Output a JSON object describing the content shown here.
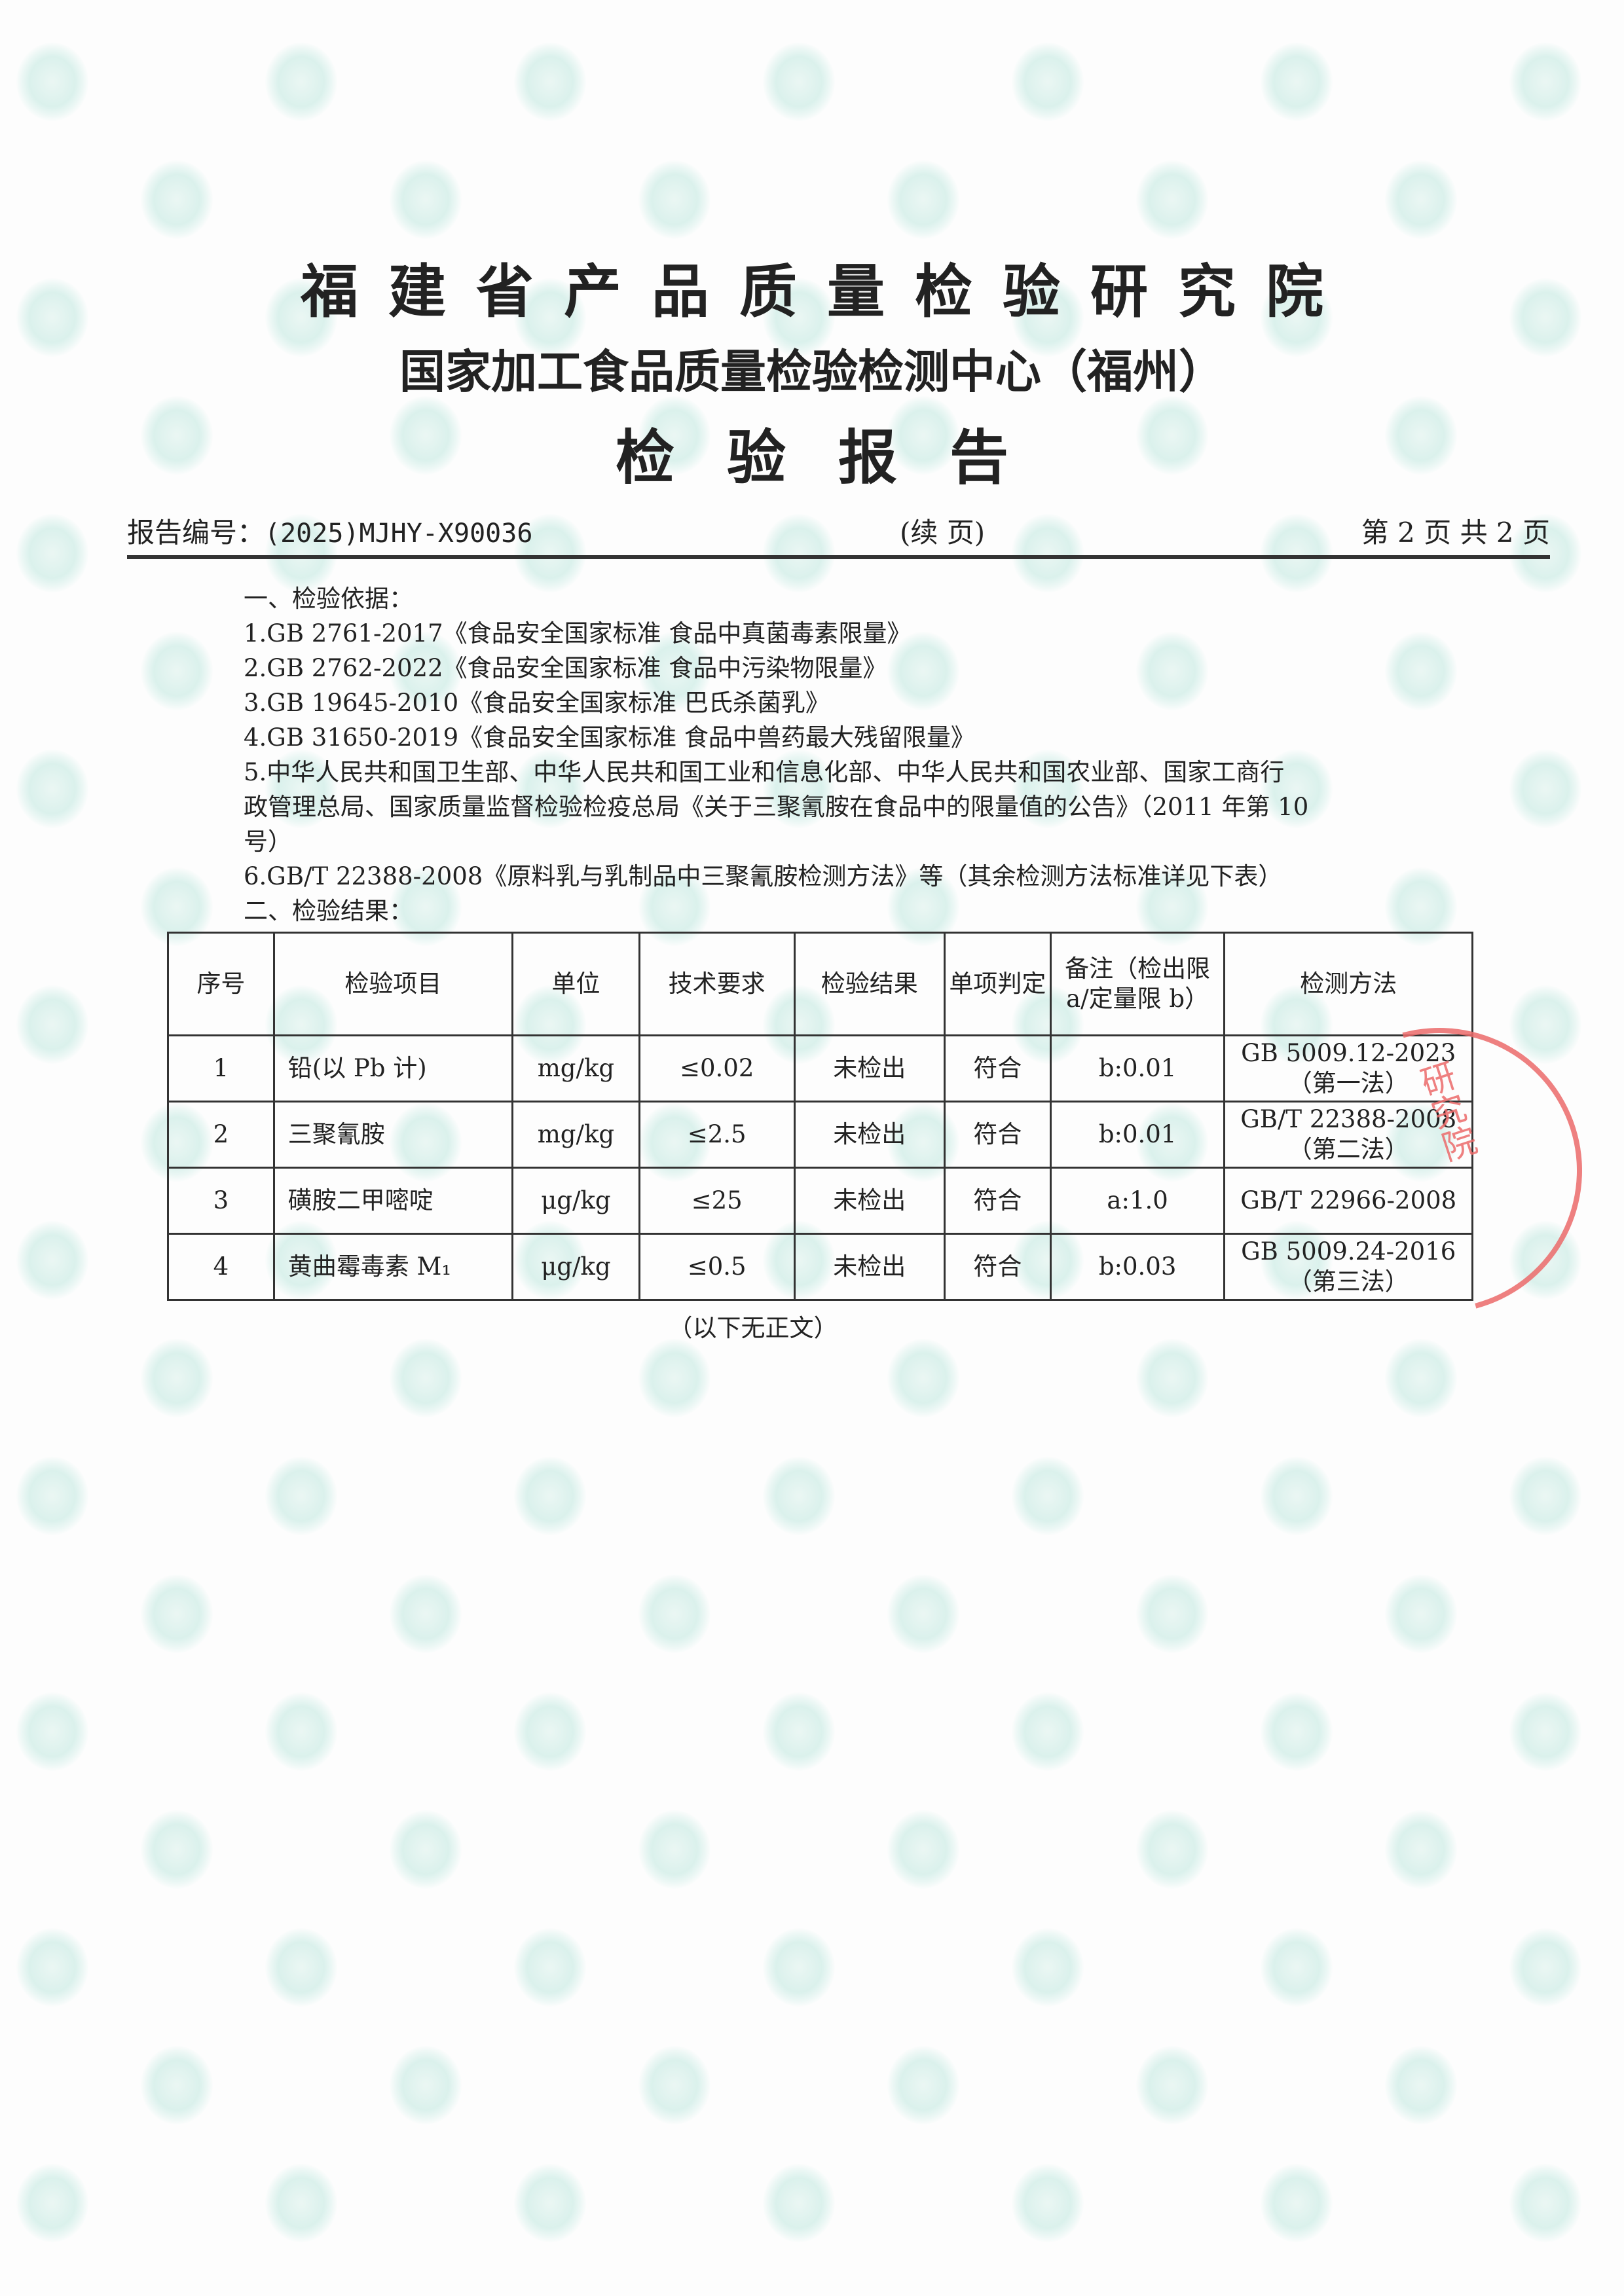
{
  "header": {
    "institute": "福建省产品质量检验研究院",
    "center": "国家加工食品质量检验检测中心（福州）",
    "doc_title": "检验报告",
    "report_no_label": "报告编号：",
    "report_no": "(2025)MJHY-X90036",
    "continuation": "(续 页)",
    "page_info": "第 2 页   共 2 页"
  },
  "basis": {
    "heading": "一、检验依据：",
    "items": [
      "1.GB 2761-2017《食品安全国家标准  食品中真菌毒素限量》",
      "2.GB 2762-2022《食品安全国家标准  食品中污染物限量》",
      "3.GB 19645-2010《食品安全国家标准  巴氏杀菌乳》",
      "4.GB 31650-2019《食品安全国家标准  食品中兽药最大残留限量》",
      "5.中华人民共和国卫生部、中华人民共和国工业和信息化部、中华人民共和国农业部、国家工商行",
      "政管理总局、国家质量监督检验检疫总局《关于三聚氰胺在食品中的限量值的公告》（2011 年第 10",
      "号）",
      "6.GB/T 22388-2008《原料乳与乳制品中三聚氰胺检测方法》等（其余检测方法标准详见下表）"
    ]
  },
  "results": {
    "heading": "二、检验结果：",
    "columns": [
      "序号",
      "检验项目",
      "单位",
      "技术要求",
      "检验结果",
      "单项判定",
      "备注（检出限 a/定量限 b）",
      "检测方法"
    ],
    "rows": [
      [
        "1",
        "铅(以 Pb 计)",
        "mg/kg",
        "≤0.02",
        "未检出",
        "符合",
        "b:0.01",
        "GB 5009.12-2023（第一法）"
      ],
      [
        "2",
        "三聚氰胺",
        "mg/kg",
        "≤2.5",
        "未检出",
        "符合",
        "b:0.01",
        "GB/T 22388-2008（第二法）"
      ],
      [
        "3",
        "磺胺二甲嘧啶",
        "μg/kg",
        "≤25",
        "未检出",
        "符合",
        "a:1.0",
        "GB/T 22966-2008"
      ],
      [
        "4",
        "黄曲霉毒素 M₁",
        "μg/kg",
        "≤0.5",
        "未检出",
        "符合",
        "b:0.03",
        "GB 5009.24-2016（第三法）"
      ]
    ],
    "end_note": "（以下无正文）"
  },
  "seal": {
    "text": "福建省产品质量检验研究院",
    "color": "#ec6b6b"
  },
  "watermark": {
    "color": "#cdeee6",
    "icon": "institute-logo-watermark"
  }
}
